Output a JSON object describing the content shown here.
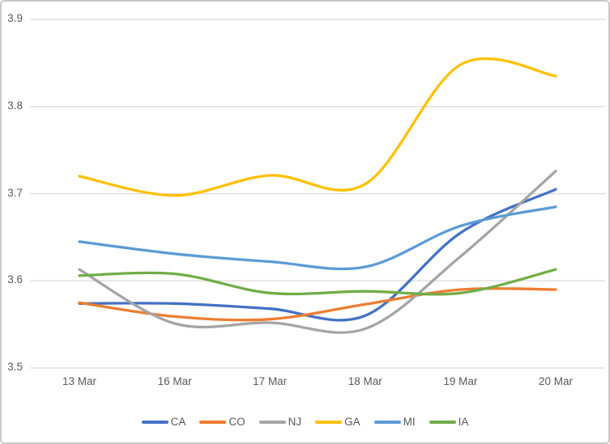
{
  "chart_data": {
    "type": "line",
    "smooth": true,
    "title": "",
    "xlabel": "",
    "ylabel": "",
    "categories": [
      "13 Mar",
      "16 Mar",
      "17 Mar",
      "18 Mar",
      "19 Mar",
      "20 Mar"
    ],
    "series": [
      {
        "name": "CA",
        "color": "#4472C4",
        "values": [
          3.574,
          3.574,
          3.568,
          3.56,
          3.655,
          3.705
        ]
      },
      {
        "name": "CO",
        "color": "#ED7D31",
        "values": [
          3.575,
          3.559,
          3.556,
          3.573,
          3.59,
          3.59
        ]
      },
      {
        "name": "NJ",
        "color": "#A5A5A5",
        "values": [
          3.613,
          3.551,
          3.552,
          3.545,
          3.628,
          3.726
        ]
      },
      {
        "name": "GA",
        "color": "#FFC000",
        "values": [
          3.72,
          3.698,
          3.721,
          3.711,
          3.848,
          3.835
        ]
      },
      {
        "name": "MI",
        "color": "#5B9BD5",
        "values": [
          3.645,
          3.631,
          3.622,
          3.616,
          3.663,
          3.685
        ]
      },
      {
        "name": "IA",
        "color": "#70AD47",
        "values": [
          3.606,
          3.608,
          3.586,
          3.588,
          3.586,
          3.613
        ]
      }
    ],
    "y_ticks": [
      "3.9",
      "3.8",
      "3.7",
      "3.6",
      "3.5"
    ],
    "ylim": [
      3.5,
      3.9
    ],
    "grid": "horizontal",
    "legend_position": "bottom",
    "gridline_color": "#D9D9D9",
    "axis_text_color": "#595959"
  }
}
